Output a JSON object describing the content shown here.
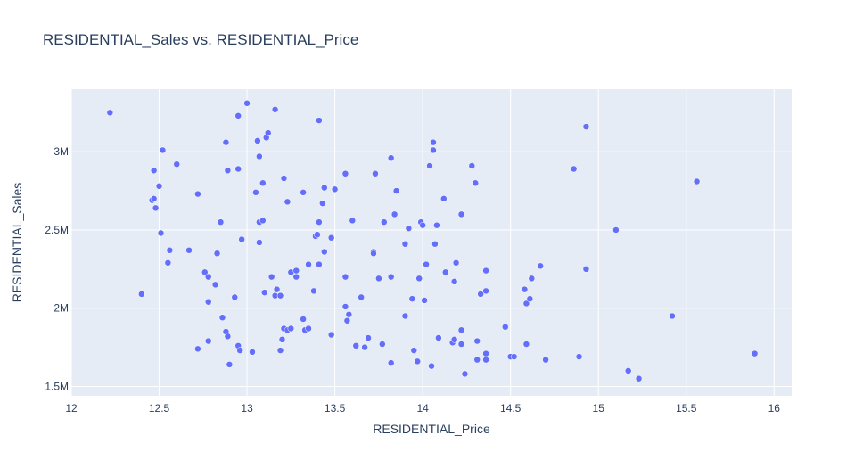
{
  "chart_data": {
    "type": "scatter",
    "title": "RESIDENTIAL_Sales vs. RESIDENTIAL_Price",
    "xlabel": "RESIDENTIAL_Price",
    "ylabel": "RESIDENTIAL_Sales",
    "xlim": [
      12,
      16.1
    ],
    "ylim": [
      1.44,
      3.4
    ],
    "x_ticks": [
      12,
      12.5,
      13,
      13.5,
      14,
      14.5,
      15,
      15.5,
      16
    ],
    "x_tick_labels": [
      "12",
      "12.5",
      "13",
      "13.5",
      "14",
      "14.5",
      "15",
      "15.5",
      "16"
    ],
    "y_ticks": [
      1.5,
      2,
      2.5,
      3
    ],
    "y_tick_labels": [
      "1.5M",
      "2M",
      "2.5M",
      "3M"
    ],
    "marker_color": "#636efa",
    "plot_bg": "#e5ecf6",
    "grid": true,
    "points": [
      [
        12.22,
        3.25
      ],
      [
        12.4,
        2.09
      ],
      [
        12.46,
        2.69
      ],
      [
        12.47,
        2.7
      ],
      [
        12.47,
        2.88
      ],
      [
        12.48,
        2.64
      ],
      [
        12.5,
        2.78
      ],
      [
        12.51,
        2.48
      ],
      [
        12.52,
        3.01
      ],
      [
        12.55,
        2.29
      ],
      [
        12.56,
        2.37
      ],
      [
        12.6,
        2.92
      ],
      [
        12.67,
        2.37
      ],
      [
        12.72,
        2.73
      ],
      [
        12.72,
        1.74
      ],
      [
        12.76,
        2.23
      ],
      [
        12.78,
        2.2
      ],
      [
        12.78,
        2.04
      ],
      [
        12.78,
        1.79
      ],
      [
        12.82,
        2.15
      ],
      [
        12.83,
        2.35
      ],
      [
        12.85,
        2.55
      ],
      [
        12.86,
        1.94
      ],
      [
        12.88,
        3.06
      ],
      [
        12.88,
        1.85
      ],
      [
        12.89,
        1.82
      ],
      [
        12.89,
        2.88
      ],
      [
        12.9,
        1.64
      ],
      [
        12.93,
        2.07
      ],
      [
        12.95,
        3.23
      ],
      [
        12.95,
        2.89
      ],
      [
        12.95,
        1.76
      ],
      [
        12.96,
        1.73
      ],
      [
        12.97,
        2.44
      ],
      [
        13.0,
        3.31
      ],
      [
        13.03,
        1.72
      ],
      [
        13.05,
        2.74
      ],
      [
        13.06,
        3.07
      ],
      [
        13.07,
        2.97
      ],
      [
        13.07,
        2.42
      ],
      [
        13.07,
        2.55
      ],
      [
        13.09,
        2.56
      ],
      [
        13.09,
        2.8
      ],
      [
        13.1,
        2.1
      ],
      [
        13.11,
        3.09
      ],
      [
        13.12,
        3.12
      ],
      [
        13.14,
        2.2
      ],
      [
        13.16,
        3.27
      ],
      [
        13.16,
        2.08
      ],
      [
        13.17,
        2.12
      ],
      [
        13.19,
        2.08
      ],
      [
        13.19,
        1.73
      ],
      [
        13.2,
        1.8
      ],
      [
        13.21,
        2.83
      ],
      [
        13.21,
        1.87
      ],
      [
        13.23,
        2.68
      ],
      [
        13.23,
        1.86
      ],
      [
        13.25,
        2.23
      ],
      [
        13.25,
        1.87
      ],
      [
        13.28,
        2.24
      ],
      [
        13.28,
        2.2
      ],
      [
        13.32,
        2.74
      ],
      [
        13.32,
        1.93
      ],
      [
        13.33,
        1.86
      ],
      [
        13.35,
        2.28
      ],
      [
        13.35,
        1.87
      ],
      [
        13.38,
        2.11
      ],
      [
        13.39,
        2.46
      ],
      [
        13.4,
        2.47
      ],
      [
        13.41,
        3.2
      ],
      [
        13.41,
        2.55
      ],
      [
        13.41,
        2.28
      ],
      [
        13.43,
        2.67
      ],
      [
        13.44,
        2.77
      ],
      [
        13.44,
        2.36
      ],
      [
        13.48,
        2.45
      ],
      [
        13.48,
        1.83
      ],
      [
        13.5,
        2.76
      ],
      [
        13.56,
        2.86
      ],
      [
        13.56,
        2.2
      ],
      [
        13.56,
        2.01
      ],
      [
        13.57,
        1.92
      ],
      [
        13.58,
        1.96
      ],
      [
        13.6,
        2.56
      ],
      [
        13.62,
        1.76
      ],
      [
        13.65,
        2.07
      ],
      [
        13.67,
        1.75
      ],
      [
        13.69,
        1.81
      ],
      [
        13.72,
        2.36
      ],
      [
        13.72,
        2.35
      ],
      [
        13.73,
        2.86
      ],
      [
        13.75,
        2.19
      ],
      [
        13.77,
        1.77
      ],
      [
        13.78,
        2.55
      ],
      [
        13.82,
        2.96
      ],
      [
        13.82,
        2.2
      ],
      [
        13.82,
        1.65
      ],
      [
        13.84,
        2.6
      ],
      [
        13.85,
        2.75
      ],
      [
        13.9,
        2.41
      ],
      [
        13.9,
        1.95
      ],
      [
        13.92,
        2.51
      ],
      [
        13.94,
        2.06
      ],
      [
        13.95,
        1.73
      ],
      [
        13.97,
        1.66
      ],
      [
        13.98,
        2.19
      ],
      [
        13.99,
        2.55
      ],
      [
        14.0,
        2.53
      ],
      [
        14.01,
        2.05
      ],
      [
        14.02,
        2.28
      ],
      [
        14.04,
        2.91
      ],
      [
        14.05,
        1.63
      ],
      [
        14.06,
        3.06
      ],
      [
        14.06,
        3.01
      ],
      [
        14.07,
        2.41
      ],
      [
        14.08,
        2.53
      ],
      [
        14.09,
        1.81
      ],
      [
        14.12,
        2.7
      ],
      [
        14.13,
        2.23
      ],
      [
        14.17,
        1.78
      ],
      [
        14.18,
        2.17
      ],
      [
        14.18,
        1.8
      ],
      [
        14.19,
        2.29
      ],
      [
        14.22,
        2.6
      ],
      [
        14.22,
        1.86
      ],
      [
        14.22,
        1.77
      ],
      [
        14.24,
        1.58
      ],
      [
        14.28,
        2.91
      ],
      [
        14.3,
        2.8
      ],
      [
        14.31,
        1.79
      ],
      [
        14.31,
        1.67
      ],
      [
        14.33,
        2.09
      ],
      [
        14.36,
        2.11
      ],
      [
        14.36,
        2.24
      ],
      [
        14.36,
        1.71
      ],
      [
        14.36,
        1.67
      ],
      [
        14.47,
        1.88
      ],
      [
        14.5,
        1.69
      ],
      [
        14.52,
        1.69
      ],
      [
        14.58,
        2.12
      ],
      [
        14.59,
        2.03
      ],
      [
        14.59,
        1.77
      ],
      [
        14.61,
        2.06
      ],
      [
        14.62,
        2.19
      ],
      [
        14.67,
        2.27
      ],
      [
        14.7,
        1.67
      ],
      [
        14.86,
        2.89
      ],
      [
        14.89,
        1.69
      ],
      [
        14.93,
        3.16
      ],
      [
        14.93,
        2.25
      ],
      [
        15.1,
        2.5
      ],
      [
        15.17,
        1.6
      ],
      [
        15.23,
        1.55
      ],
      [
        15.42,
        1.95
      ],
      [
        15.56,
        2.81
      ],
      [
        15.89,
        1.71
      ]
    ]
  }
}
